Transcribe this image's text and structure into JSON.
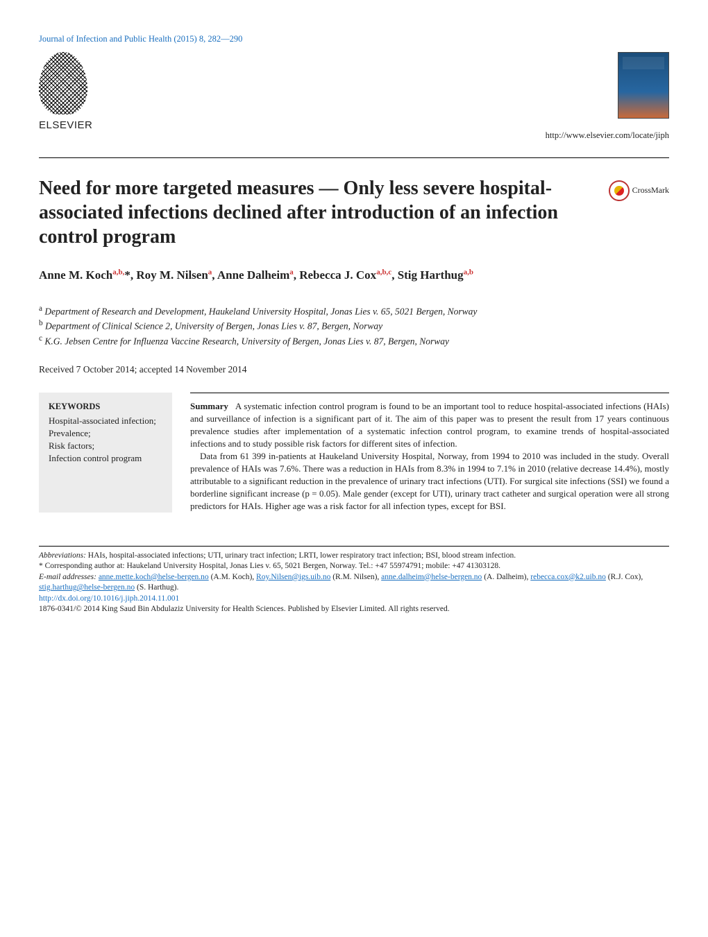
{
  "top_citation": "Journal of Infection and Public Health (2015) 8, 282—290",
  "publisher": {
    "name": "ELSEVIER",
    "site_url": "http://www.elsevier.com/locate/jiph"
  },
  "crossmark_label": "CrossMark",
  "title": "Need for more targeted measures — Only less severe hospital-associated infections declined after introduction of an infection control program",
  "authors_html": "Anne M. Koch<sup>a,b,</sup>*, Roy M. Nilsen<sup>a</sup>, Anne Dalheim<sup>a</sup>, Rebecca J. Cox<sup>a,b,c</sup>, Stig Harthug<sup>a,b</sup>",
  "affiliations": {
    "a": "Department of Research and Development, Haukeland University Hospital, Jonas Lies v. 65, 5021 Bergen, Norway",
    "b": "Department of Clinical Science 2, University of Bergen, Jonas Lies v. 87, Bergen, Norway",
    "c": "K.G. Jebsen Centre for Influenza Vaccine Research, University of Bergen, Jonas Lies v. 87, Bergen, Norway"
  },
  "history": "Received 7 October 2014; accepted 14 November 2014",
  "keywords": {
    "heading": "KEYWORDS",
    "list": "Hospital-associated infection;\nPrevalence;\nRisk factors;\nInfection control program"
  },
  "abstract": {
    "lead": "Summary",
    "p1": "A systematic infection control program is found to be an important tool to reduce hospital-associated infections (HAIs) and surveillance of infection is a significant part of it. The aim of this paper was to present the result from 17 years continuous prevalence studies after implementation of a systematic infection control program, to examine trends of hospital-associated infections and to study possible risk factors for different sites of infection.",
    "p2": "Data from 61 399 in-patients at Haukeland University Hospital, Norway, from 1994 to 2010 was included in the study. Overall prevalence of HAIs was 7.6%. There was a reduction in HAIs from 8.3% in 1994 to 7.1% in 2010 (relative decrease 14.4%), mostly attributable to a significant reduction in the prevalence of urinary tract infections (UTI). For surgical site infections (SSI) we found a borderline significant increase (p = 0.05). Male gender (except for UTI), urinary tract catheter and surgical operation were all strong predictors for HAIs. Higher age was a risk factor for all infection types, except for BSI."
  },
  "footnotes": {
    "abbrev_label": "Abbreviations:",
    "abbrev_text": " HAIs, hospital-associated infections; UTI, urinary tract infection; LRTI, lower respiratory tract infection; BSI, blood stream infection.",
    "corr": "* Corresponding author at: Haukeland University Hospital, Jonas Lies v. 65, 5021 Bergen, Norway. Tel.: +47 55974791; mobile: +47 41303128.",
    "email_label": "E-mail addresses:",
    "emails": [
      {
        "addr": "anne.mette.koch@helse-bergen.no",
        "who": " (A.M. Koch), "
      },
      {
        "addr": "Roy.Nilsen@igs.uib.no",
        "who": " (R.M. Nilsen), "
      },
      {
        "addr": "anne.dalheim@helse-bergen.no",
        "who": " (A. Dalheim), "
      },
      {
        "addr": "rebecca.cox@k2.uib.no",
        "who": " (R.J. Cox), "
      },
      {
        "addr": "stig.harthug@helse-bergen.no",
        "who": " (S. Harthug)."
      }
    ],
    "doi": "http://dx.doi.org/10.1016/j.jiph.2014.11.001",
    "copyright": "1876-0341/© 2014 King Saud Bin Abdulaziz University for Health Sciences. Published by Elsevier Limited. All rights reserved."
  }
}
